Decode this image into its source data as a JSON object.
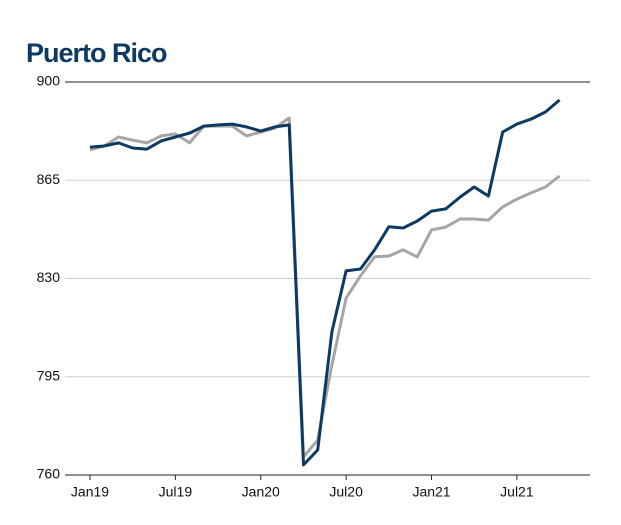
{
  "chart_data": {
    "type": "line",
    "title": "Puerto Rico",
    "categories": [
      "Jan19",
      null,
      null,
      null,
      null,
      null,
      "Jul19",
      null,
      null,
      null,
      null,
      null,
      "Jan20",
      null,
      null,
      null,
      null,
      null,
      "Jul20",
      null,
      null,
      null,
      null,
      null,
      "Jan21",
      null,
      null,
      null,
      null,
      null,
      "Jul21",
      null,
      null,
      null
    ],
    "series": [
      {
        "color": "#0d3a63",
        "values": [
          876.8,
          877.2,
          878.3,
          876.5,
          876.1,
          879,
          880.4,
          881.8,
          884.3,
          884.7,
          885,
          884,
          882.5,
          884,
          884.7,
          763.6,
          768.9,
          811,
          832.7,
          833.4,
          840.2,
          848.4,
          848,
          850.5,
          854,
          854.8,
          859,
          862.6,
          859.4,
          882.2,
          885,
          886.8,
          889.3,
          893.6
        ]
      },
      {
        "color": "#a6a6a6",
        "values": [
          875.8,
          877.2,
          880.4,
          879.3,
          878.3,
          880.8,
          881.5,
          878.3,
          884.3,
          884.3,
          884.3,
          880.8,
          882.2,
          883.6,
          887.2,
          766.4,
          772.5,
          799.2,
          823,
          830.9,
          837.7,
          838,
          840.2,
          837.7,
          847.3,
          848.3,
          851.2,
          851.2,
          850.8,
          855.5,
          858.3,
          860.5,
          862.6,
          866.5
        ]
      }
    ],
    "ylim": [
      760,
      900
    ],
    "yticks": [
      760,
      795,
      830,
      865,
      900
    ],
    "grid": true
  }
}
